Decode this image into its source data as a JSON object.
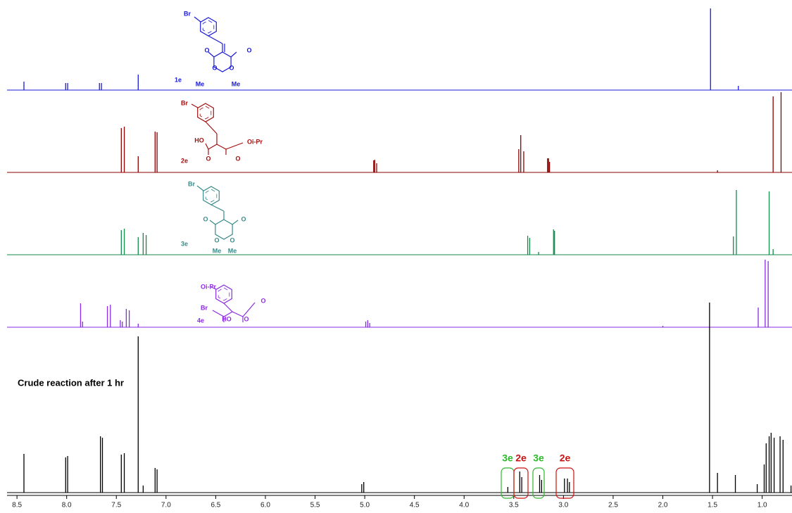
{
  "chart_data": {
    "type": "spectra",
    "xlim": [
      8.6,
      0.7
    ],
    "xticks": [
      8.5,
      {
        "value": 8,
        "label": "8.0"
      },
      7.5,
      {
        "value": 7,
        "label": "7.0"
      },
      6.5,
      {
        "value": 6,
        "label": "6.0"
      },
      5.5,
      {
        "value": 5,
        "label": "5.0"
      },
      4.5,
      {
        "value": 4,
        "label": "4.0"
      },
      3.5,
      {
        "value": 3,
        "label": "3.0"
      },
      2.5,
      {
        "value": 2,
        "label": "2.0"
      },
      1.5,
      {
        "value": 1,
        "label": "1.0"
      }
    ],
    "series": [
      {
        "name": "1e",
        "color": "#1a1ad6",
        "structure_color": "#1a1ad6",
        "x": [
          8.43,
          8.01,
          7.99,
          7.67,
          7.65,
          7.28,
          1.52,
          1.24
        ],
        "values": [
          12,
          10,
          10,
          10,
          10,
          22,
          116,
          6
        ],
        "structure_labels": [
          "Br",
          "O",
          "O",
          "O",
          "O",
          "Me",
          "Me"
        ]
      },
      {
        "name": "2e",
        "color": "#8b0000",
        "structure_color": "#a01010",
        "x": [
          7.45,
          7.42,
          7.28,
          7.11,
          7.09,
          4.91,
          4.9,
          4.88,
          3.45,
          3.43,
          3.4,
          3.16,
          3.15,
          3.14,
          1.45,
          0.89,
          0.81
        ],
        "values": [
          63,
          65,
          23,
          58,
          57,
          17,
          18,
          13,
          33,
          53,
          30,
          20,
          20,
          15,
          3,
          108,
          114
        ],
        "structure_labels": [
          "Br",
          "HO",
          "O",
          "O",
          "Oi-Pr"
        ]
      },
      {
        "name": "3e",
        "color": "#138a4a",
        "structure_color": "#3a8a8a",
        "x": [
          7.45,
          7.42,
          7.28,
          7.23,
          7.2,
          3.36,
          3.34,
          3.25,
          3.1,
          3.09,
          1.29,
          1.26,
          0.93,
          0.89
        ],
        "values": [
          35,
          37,
          25,
          31,
          28,
          27,
          24,
          4,
          36,
          34,
          26,
          92,
          90,
          8
        ],
        "structure_labels": [
          "Br",
          "O",
          "O",
          "O",
          "O",
          "Me",
          "Me"
        ]
      },
      {
        "name": "4e",
        "color": "#8a2be2",
        "structure_color": "#8a2be2",
        "x": [
          7.86,
          7.84,
          7.59,
          7.56,
          7.46,
          7.44,
          7.4,
          7.37,
          7.28,
          4.99,
          4.97,
          4.95,
          2.0,
          1.04,
          0.97,
          0.94
        ],
        "values": [
          34,
          8,
          30,
          32,
          10,
          8,
          26,
          24,
          5,
          8,
          10,
          6,
          2,
          28,
          96,
          94
        ],
        "structure_labels": [
          "Br",
          "HO",
          "O",
          "O",
          "Oi-Pr"
        ]
      },
      {
        "name": "Crude reaction after 1 hr",
        "color": "#000000",
        "x": [
          8.43,
          8.01,
          7.99,
          7.66,
          7.64,
          7.45,
          7.42,
          7.28,
          7.23,
          7.11,
          7.09,
          5.03,
          5.01,
          3.56,
          3.44,
          3.42,
          3.24,
          3.22,
          2.99,
          2.96,
          2.94,
          1.53,
          1.45,
          1.27,
          1.05,
          0.98,
          0.96,
          0.93,
          0.91,
          0.88,
          0.82,
          0.79,
          0.71
        ],
        "values": [
          55,
          50,
          52,
          80,
          78,
          54,
          56,
          222,
          10,
          35,
          33,
          12,
          15,
          8,
          30,
          22,
          25,
          18,
          20,
          20,
          15,
          270,
          28,
          25,
          12,
          40,
          70,
          80,
          85,
          78,
          80,
          75,
          10
        ]
      }
    ],
    "annotations": [
      {
        "text": "3e",
        "color": "#2db82d"
      },
      {
        "text": "2e",
        "color": "#cc1111"
      },
      {
        "text": "3e",
        "color": "#2db82d"
      },
      {
        "text": "2e",
        "color": "#cc1111"
      }
    ]
  }
}
